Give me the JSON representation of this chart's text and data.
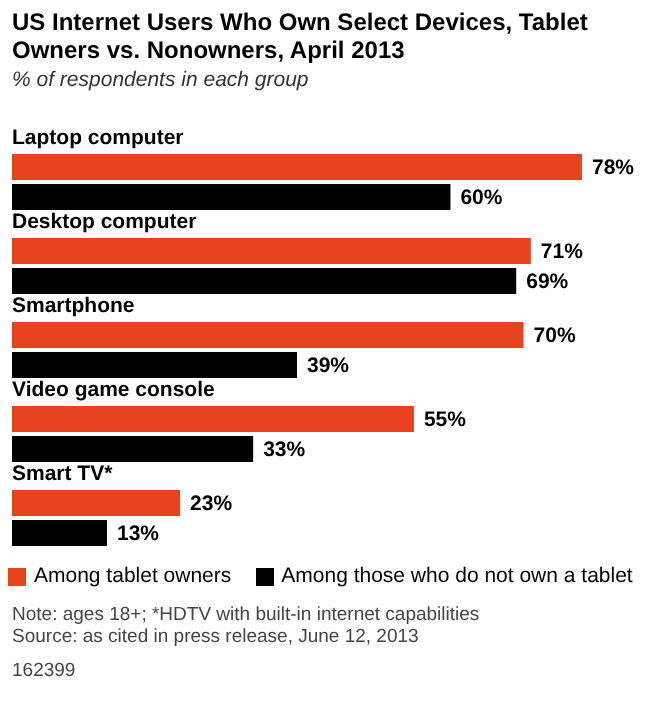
{
  "chart_data": {
    "type": "bar",
    "orientation": "horizontal",
    "title": "US Internet Users Who Own Select Devices, Tablet Owners vs. Nonowners, April 2013",
    "subtitle": "% of respondents in each group",
    "categories": [
      "Laptop computer",
      "Desktop computer",
      "Smartphone",
      "Video game console",
      "Smart TV*"
    ],
    "series": [
      {
        "name": "Among tablet owners",
        "color": "#e8431f",
        "values": [
          78,
          71,
          70,
          55,
          23
        ],
        "value_labels": [
          "78%",
          "71%",
          "70%",
          "55%",
          "23%"
        ]
      },
      {
        "name": "Among those who do not own a tablet",
        "color": "#000000",
        "values": [
          60,
          69,
          39,
          33,
          13
        ],
        "value_labels": [
          "60%",
          "69%",
          "39%",
          "33%",
          "13%"
        ]
      }
    ],
    "legend": "bottom",
    "annotations": [
      "Note: ages 18+; *HDTV with built-in internet capabilities",
      "Source: as cited in press release, June 12, 2013",
      "162399"
    ]
  }
}
